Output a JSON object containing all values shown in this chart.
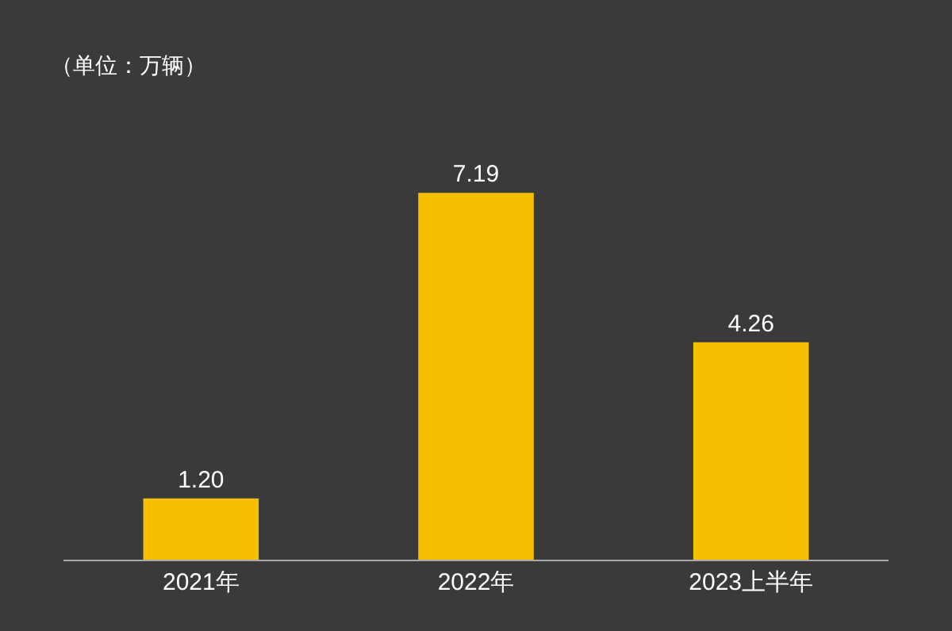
{
  "chart_data": {
    "type": "bar",
    "annotations": [
      "（单位：万辆）"
    ],
    "categories": [
      "2021年",
      "2022年",
      "2023上半年"
    ],
    "values": [
      1.2,
      7.19,
      4.26
    ],
    "color": "#f5c000",
    "value_labels": [
      "1.20",
      "7.19",
      "4.26"
    ],
    "tick_labels": "x"
  }
}
